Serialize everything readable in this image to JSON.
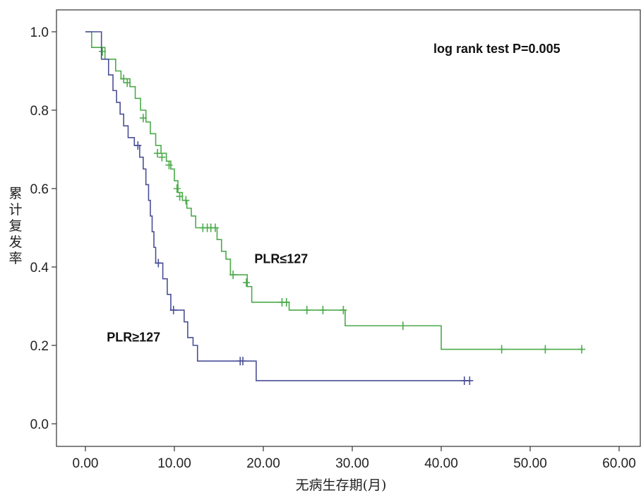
{
  "chart_data": {
    "type": "line",
    "subtype": "kaplan-meier",
    "xlabel": "无病生存期(月)",
    "ylabel": "累计复发率",
    "xlim": [
      0,
      60
    ],
    "ylim": [
      0,
      1.0
    ],
    "x_ticks": [
      "0.00",
      "10.00",
      "20.00",
      "30.00",
      "40.00",
      "50.00",
      "60.00"
    ],
    "y_ticks": [
      "0.0",
      "0.2",
      "0.4",
      "0.6",
      "0.8",
      "1.0"
    ],
    "grid": false,
    "annotation": "log rank test P=0.005",
    "series": [
      {
        "name": "PLR≤127",
        "color": "#4aab4a",
        "steps": [
          [
            0,
            1.0
          ],
          [
            0.7,
            0.96
          ],
          [
            2.2,
            0.93
          ],
          [
            3.4,
            0.9
          ],
          [
            4.0,
            0.88
          ],
          [
            5.0,
            0.86
          ],
          [
            5.6,
            0.83
          ],
          [
            6.2,
            0.8
          ],
          [
            6.8,
            0.77
          ],
          [
            7.3,
            0.74
          ],
          [
            7.9,
            0.71
          ],
          [
            8.5,
            0.69
          ],
          [
            9.1,
            0.67
          ],
          [
            9.6,
            0.65
          ],
          [
            10.0,
            0.62
          ],
          [
            10.4,
            0.59
          ],
          [
            10.9,
            0.57
          ],
          [
            11.4,
            0.55
          ],
          [
            11.9,
            0.53
          ],
          [
            12.4,
            0.5
          ],
          [
            14.8,
            0.47
          ],
          [
            15.3,
            0.44
          ],
          [
            15.8,
            0.42
          ],
          [
            16.3,
            0.38
          ],
          [
            18.2,
            0.35
          ],
          [
            18.7,
            0.31
          ],
          [
            22.9,
            0.29
          ],
          [
            29.2,
            0.25
          ],
          [
            40.0,
            0.19
          ],
          [
            55.9,
            0.19
          ]
        ],
        "censors": [
          [
            1.9,
            0.95
          ],
          [
            4.3,
            0.88
          ],
          [
            4.7,
            0.87
          ],
          [
            6.5,
            0.78
          ],
          [
            8.1,
            0.69
          ],
          [
            8.6,
            0.68
          ],
          [
            9.4,
            0.66
          ],
          [
            10.3,
            0.6
          ],
          [
            10.6,
            0.58
          ],
          [
            11.3,
            0.57
          ],
          [
            13.2,
            0.5
          ],
          [
            13.7,
            0.5
          ],
          [
            14.1,
            0.5
          ],
          [
            14.6,
            0.5
          ],
          [
            16.6,
            0.38
          ],
          [
            18.1,
            0.36
          ],
          [
            22.1,
            0.31
          ],
          [
            22.6,
            0.31
          ],
          [
            24.9,
            0.29
          ],
          [
            26.7,
            0.29
          ],
          [
            29.0,
            0.29
          ],
          [
            35.7,
            0.25
          ],
          [
            46.8,
            0.19
          ],
          [
            51.7,
            0.19
          ],
          [
            55.8,
            0.19
          ]
        ]
      },
      {
        "name": "PLR≥127",
        "color": "#4a4f96",
        "steps": [
          [
            0,
            1.0
          ],
          [
            1.8,
            0.93
          ],
          [
            2.6,
            0.89
          ],
          [
            3.1,
            0.85
          ],
          [
            3.5,
            0.82
          ],
          [
            3.9,
            0.79
          ],
          [
            4.3,
            0.76
          ],
          [
            4.8,
            0.73
          ],
          [
            5.5,
            0.71
          ],
          [
            6.1,
            0.68
          ],
          [
            6.5,
            0.65
          ],
          [
            6.8,
            0.61
          ],
          [
            7.1,
            0.57
          ],
          [
            7.3,
            0.53
          ],
          [
            7.5,
            0.49
          ],
          [
            7.7,
            0.45
          ],
          [
            7.9,
            0.41
          ],
          [
            8.7,
            0.37
          ],
          [
            9.2,
            0.33
          ],
          [
            9.6,
            0.29
          ],
          [
            11.1,
            0.26
          ],
          [
            11.5,
            0.22
          ],
          [
            12.1,
            0.2
          ],
          [
            12.6,
            0.16
          ],
          [
            19.2,
            0.11
          ],
          [
            43.3,
            0.11
          ]
        ],
        "censors": [
          [
            5.9,
            0.71
          ],
          [
            8.2,
            0.41
          ],
          [
            9.9,
            0.29
          ],
          [
            17.4,
            0.16
          ],
          [
            17.7,
            0.16
          ],
          [
            42.6,
            0.11
          ],
          [
            43.2,
            0.11
          ]
        ]
      }
    ],
    "labels": [
      {
        "text": "PLR≤127",
        "x": 19.0,
        "y": 0.41
      },
      {
        "text": "PLR≥127",
        "x": 2.4,
        "y": 0.21
      }
    ]
  }
}
